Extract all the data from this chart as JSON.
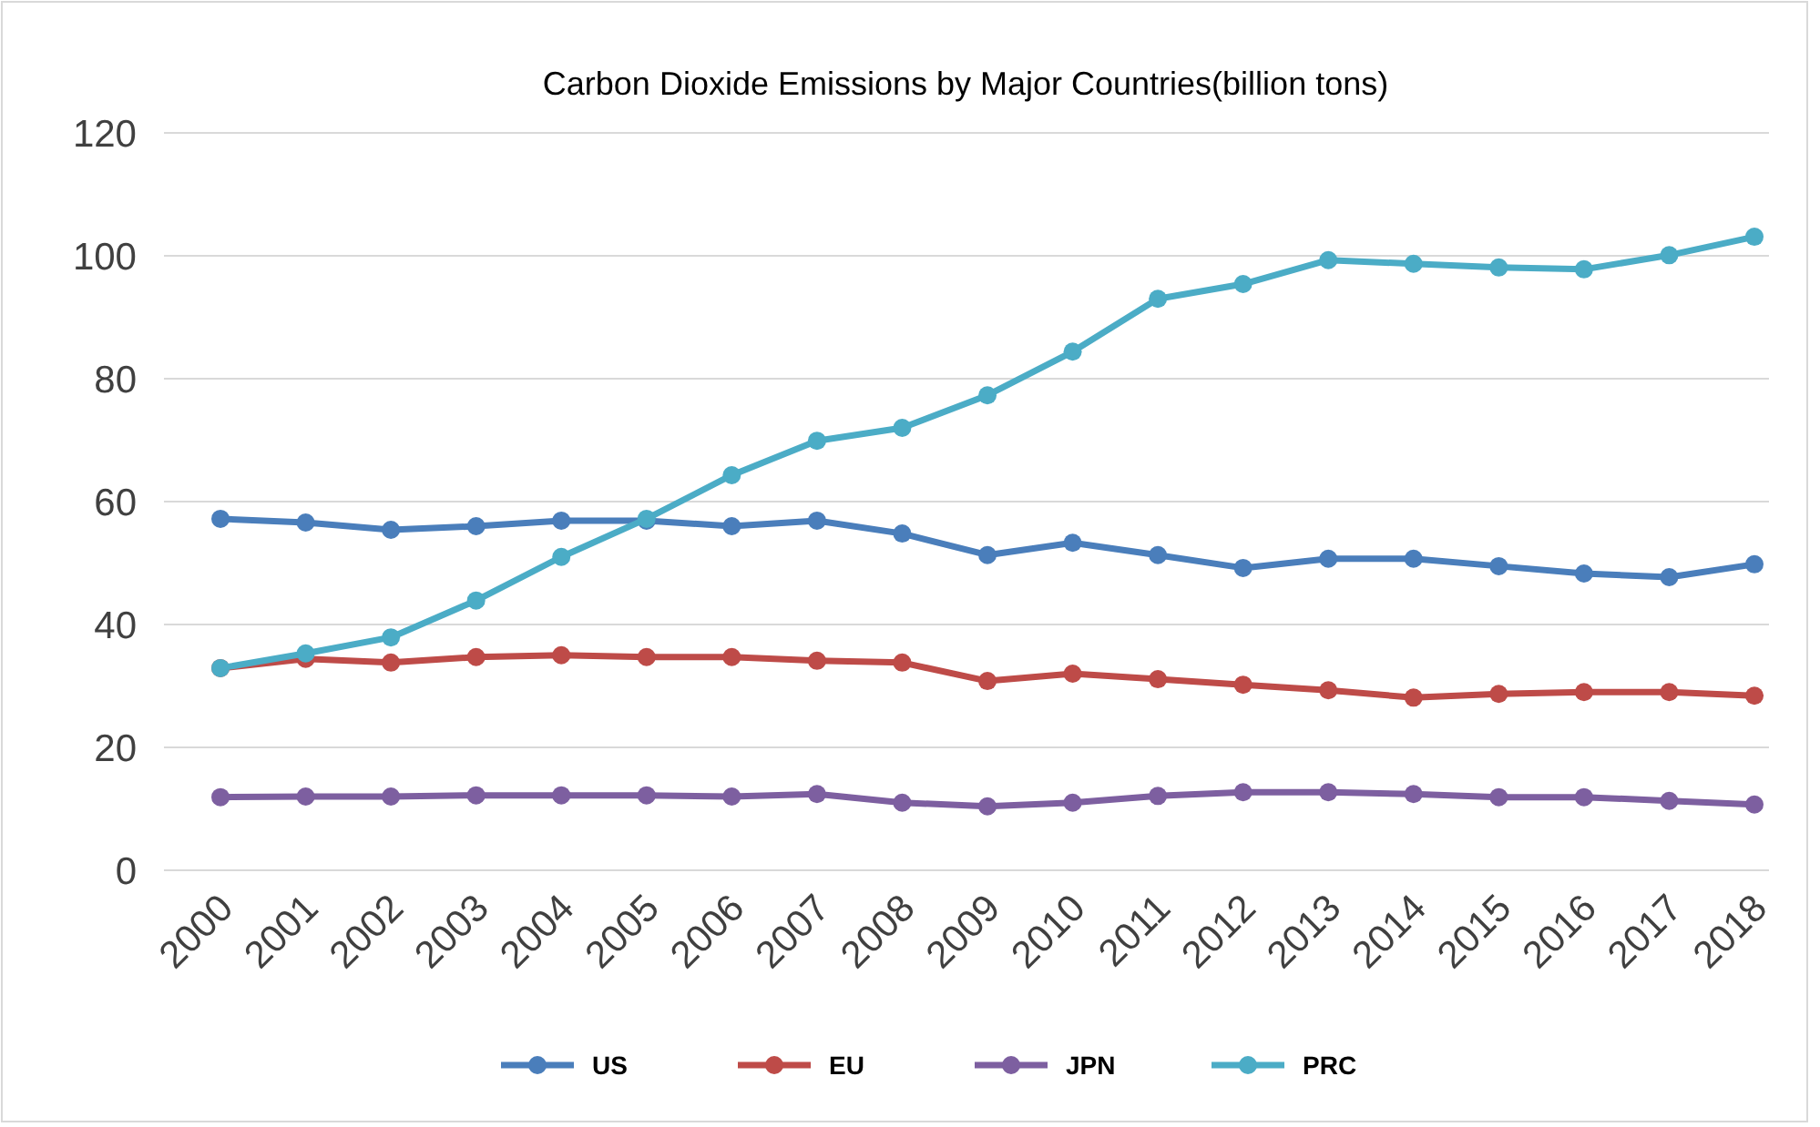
{
  "chart_data": {
    "type": "line",
    "title": "Carbon Dioxide Emissions by Major Countries(billion tons)",
    "categories": [
      "2000",
      "2001",
      "2002",
      "2003",
      "2004",
      "2005",
      "2006",
      "2007",
      "2008",
      "2009",
      "2010",
      "2011",
      "2012",
      "2013",
      "2014",
      "2015",
      "2016",
      "2017",
      "2018"
    ],
    "series": [
      {
        "name": "US",
        "color": "#4a7ebb",
        "values": [
          57.2,
          56.6,
          55.4,
          56,
          56.9,
          56.9,
          56,
          56.9,
          54.8,
          51.3,
          53.3,
          51.3,
          49.2,
          50.7,
          50.7,
          49.5,
          48.3,
          47.7,
          49.8
        ]
      },
      {
        "name": "EU",
        "color": "#be4b48",
        "values": [
          32.9,
          34.4,
          33.8,
          34.7,
          35,
          34.7,
          34.7,
          34.1,
          33.8,
          30.8,
          32,
          31.1,
          30.2,
          29.3,
          28.1,
          28.7,
          29,
          29,
          28.4
        ]
      },
      {
        "name": "JPN",
        "color": "#7d5fa0",
        "values": [
          11.9,
          12,
          12,
          12.2,
          12.2,
          12.2,
          12,
          12.4,
          11,
          10.4,
          11,
          12.1,
          12.7,
          12.7,
          12.4,
          11.9,
          11.9,
          11.3,
          10.7
        ]
      },
      {
        "name": "PRC",
        "color": "#4bacc6",
        "values": [
          32.9,
          35.3,
          37.9,
          43.9,
          51,
          57.2,
          64.3,
          69.9,
          72,
          77.3,
          84.4,
          93,
          95.4,
          99.3,
          98.7,
          98.1,
          97.8,
          100.1,
          103.1
        ]
      }
    ],
    "ylim": [
      0,
      120
    ],
    "yticks": [
      0,
      20,
      40,
      60,
      80,
      100,
      120
    ],
    "grid": "y",
    "legend": "bottom",
    "marker": "circle",
    "line_style": "solid"
  }
}
